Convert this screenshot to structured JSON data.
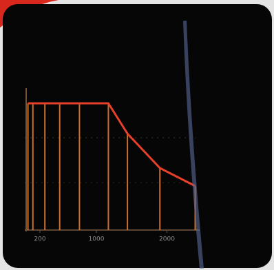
{
  "chart_data": {
    "type": "line",
    "x": [
      30,
      100,
      270,
      480,
      760,
      1170,
      1440,
      1900,
      2400
    ],
    "series": [
      {
        "color": "#e8402a",
        "stem_color": "#e07a30",
        "values": [
          0.9,
          0.9,
          0.9,
          0.9,
          0.9,
          0.9,
          0.68,
          0.43,
          0.3
        ]
      }
    ],
    "xlim": [
      0,
      2400
    ],
    "xticks": [
      200,
      1000,
      2000
    ],
    "ylim": [
      0,
      1
    ],
    "stems": true
  }
}
